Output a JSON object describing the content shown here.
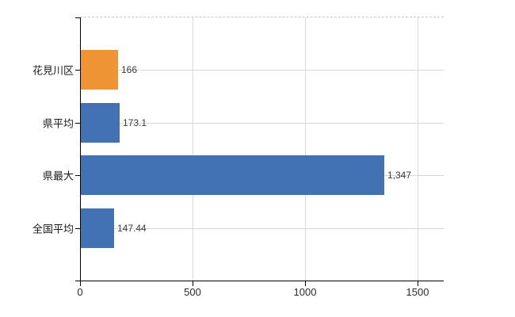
{
  "chart_data": {
    "type": "bar",
    "orientation": "horizontal",
    "title": "",
    "xlabel": "",
    "ylabel": "",
    "categories": [
      "花見川区",
      "県平均",
      "県最大",
      "全国平均"
    ],
    "values": [
      166,
      173.1,
      1347,
      147.44
    ],
    "value_labels": [
      "166",
      "173.1",
      "1,347",
      "147.44"
    ],
    "bar_colors": [
      "#ee9434",
      "#4272b4",
      "#4272b4",
      "#4272b4"
    ],
    "x_tick_labels": [
      "0",
      "500",
      "1000",
      "1500"
    ],
    "x_tick_values": [
      0,
      500,
      1000,
      1500
    ],
    "xlim": [
      0,
      1616
    ],
    "grid": true,
    "legend": false
  },
  "colors": {
    "bar_blue": "#4272b4",
    "bar_orange": "#ee9434",
    "axis": "#000000",
    "gridline_vertical": "#d9d9d9",
    "gridline_horizontal": "#d6dad2",
    "plot_top_border": "#c8c8c8",
    "value_text": "#3a3a3a",
    "category_text": "#1a1a1a",
    "tick_text": "#2a2a2a",
    "background": "#ffffff"
  }
}
